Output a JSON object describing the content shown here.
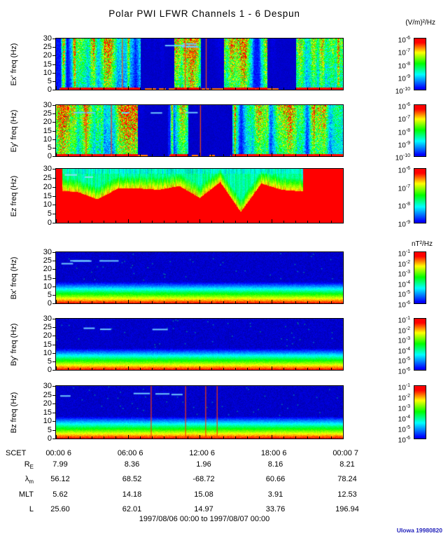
{
  "title": "Polar PWI LFWR Channels 1 - 6 Despun",
  "caption": "1997/08/06 00:00 to 1997/08/07 00:00",
  "credit": "UIowa 19980820",
  "colors": {
    "credit_blue": "#2323bb",
    "frame": "#000000"
  },
  "chart_data": {
    "type": "heatmap",
    "title": "Polar PWI LFWR Channels 1 - 6 Despun",
    "time_range": "1997/08/06 00:00 to 1997/08/07 00:00",
    "x_axis": {
      "label": "SCET",
      "ticks": [
        "00:00 6",
        "06:00 6",
        "12:00 6",
        "18:00 6",
        "00:00 7"
      ]
    },
    "y_ticks": [
      "30",
      "25",
      "20",
      "15",
      "10",
      "5",
      "0"
    ],
    "y_range_hz": [
      0,
      30
    ],
    "panels": [
      {
        "id": "ex",
        "label": "Ex' freq (Hz)",
        "units": "(V/m)²/Hz",
        "cb_exponents": [
          "-6",
          "-7",
          "-8",
          "-9",
          "-10"
        ],
        "texture": "e-burst",
        "seed": 11
      },
      {
        "id": "ey",
        "label": "Ey' freq (Hz)",
        "units": "",
        "cb_exponents": [
          "-6",
          "-7",
          "-8",
          "-9",
          "-10"
        ],
        "texture": "e-burst",
        "seed": 47
      },
      {
        "id": "ez",
        "label": "Ez freq (Hz)",
        "units": "",
        "cb_exponents": [
          "-6",
          "-7",
          "-8",
          "-9"
        ],
        "texture": "e-red",
        "seed": 23
      },
      {
        "id": "bx",
        "label": "Bx' freq (Hz)",
        "units": "nT²/Hz",
        "cb_exponents": [
          "-1",
          "-2",
          "-3",
          "-4",
          "-5",
          "-6"
        ],
        "texture": "b-band",
        "seed": 5
      },
      {
        "id": "by",
        "label": "By' freq (Hz)",
        "units": "",
        "cb_exponents": [
          "-1",
          "-2",
          "-3",
          "-4",
          "-5",
          "-6"
        ],
        "texture": "b-band",
        "seed": 89
      },
      {
        "id": "bz",
        "label": "Bz freq (Hz)",
        "units": "",
        "cb_exponents": [
          "-1",
          "-2",
          "-3",
          "-4",
          "-5",
          "-6"
        ],
        "texture": "b-band-lines",
        "seed": 31
      }
    ],
    "ephemeris": {
      "rows": [
        {
          "base": "R",
          "sub": "E",
          "values": [
            "7.99",
            "8.36",
            "1.96",
            "8.16",
            "8.21"
          ]
        },
        {
          "base": "λ",
          "sub": "m",
          "values": [
            "56.12",
            "68.52",
            "-68.72",
            "60.66",
            "78.24"
          ]
        },
        {
          "base": "MLT",
          "sub": "",
          "values": [
            "5.62",
            "14.18",
            "15.08",
            "3.91",
            "12.53"
          ]
        },
        {
          "base": "L",
          "sub": "",
          "values": [
            "25.60",
            "62.01",
            "14.97",
            "33.76",
            "196.94"
          ]
        }
      ]
    }
  }
}
